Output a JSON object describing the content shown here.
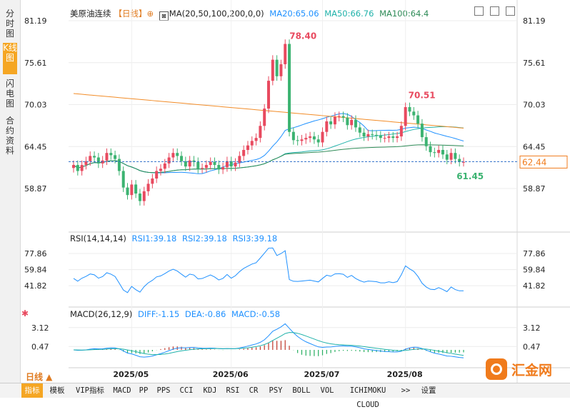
{
  "side_tabs": [
    "分时图",
    "K线图",
    "闪电图",
    "合约资料"
  ],
  "main_legend": {
    "title": "美原油连续",
    "period": "【日线】",
    "settings_icon": "⊕",
    "indicator": "MA(20,50,100,200,0,0)",
    "ma20": "MA20:65.06",
    "ma50": "MA50:66.76",
    "ma100": "MA100:64.4"
  },
  "rsi_legend": {
    "name": "RSI(14,14,14)",
    "rsi1": "RSI1:39.18",
    "rsi2": "RSI2:39.18",
    "rsi3": "RSI3:39.18"
  },
  "macd_legend": {
    "name": "MACD(26,12,9)",
    "diff": "DIFF:-1.15",
    "dea": "DEA:-0.86",
    "macd": "MACD:-0.58"
  },
  "period_selector": "日线 ▲",
  "toolbar": [
    "指标",
    "模板",
    "VIP指标",
    "MACD",
    "PP",
    "PPS",
    "CCI",
    "KDJ",
    "RSI",
    "CR",
    "PSY",
    "BOLL",
    "VOL",
    "ICHIMOKU CLOUD",
    ">>",
    "设置"
  ],
  "brand": "汇金网",
  "colors": {
    "up": "#e84a5f",
    "down": "#3cb371",
    "ma20": "#1e90ff",
    "ma50": "#20b2aa",
    "ma100": "#2e8b57",
    "ma200": "#f28c28",
    "macd_up": "#c0392b",
    "macd_down": "#27ae60"
  },
  "chart_data": {
    "type": "candlestick",
    "price_axis": {
      "ticks": [
        "81.19",
        "75.61",
        "70.03",
        "64.45",
        "58.87"
      ],
      "values": [
        81.19,
        75.61,
        70.03,
        64.45,
        58.87
      ]
    },
    "x_labels": [
      "2025/05",
      "2025/06",
      "2025/07",
      "2025/08"
    ],
    "current_price": "62.44",
    "high_label": "78.40",
    "high2_label": "70.51",
    "low_label": "61.45",
    "closes": [
      62.0,
      61.2,
      62.0,
      62.5,
      63.2,
      63.0,
      62.2,
      62.6,
      63.6,
      63.3,
      62.8,
      61.2,
      59.0,
      58.0,
      59.4,
      58.2,
      57.2,
      58.5,
      59.5,
      60.2,
      61.2,
      61.5,
      62.2,
      63.0,
      63.6,
      63.2,
      62.5,
      61.8,
      62.6,
      62.4,
      61.5,
      61.6,
      62.0,
      62.4,
      62.0,
      61.4,
      61.7,
      62.5,
      61.8,
      62.3,
      63.2,
      64.0,
      64.6,
      65.2,
      65.6,
      67.2,
      69.5,
      73.2,
      76.0,
      73.8,
      75.4,
      78.1,
      66.4,
      65.3,
      65.2,
      65.4,
      65.6,
      65.8,
      65.4,
      65.0,
      66.4,
      67.8,
      67.4,
      68.4,
      68.5,
      68.3,
      67.3,
      68.0,
      67.0,
      66.3,
      65.8,
      66.1,
      66.0,
      65.9,
      65.6,
      65.6,
      65.8,
      65.6,
      65.8,
      67.2,
      69.7,
      69.1,
      68.6,
      67.5,
      65.7,
      64.5,
      63.7,
      63.6,
      64.0,
      63.4,
      62.7,
      63.6,
      62.8,
      62.4,
      62.4
    ],
    "rsi_axis": [
      "77.86",
      "59.84",
      "41.82"
    ],
    "macd_axis": [
      "3.12",
      "0.47"
    ]
  }
}
